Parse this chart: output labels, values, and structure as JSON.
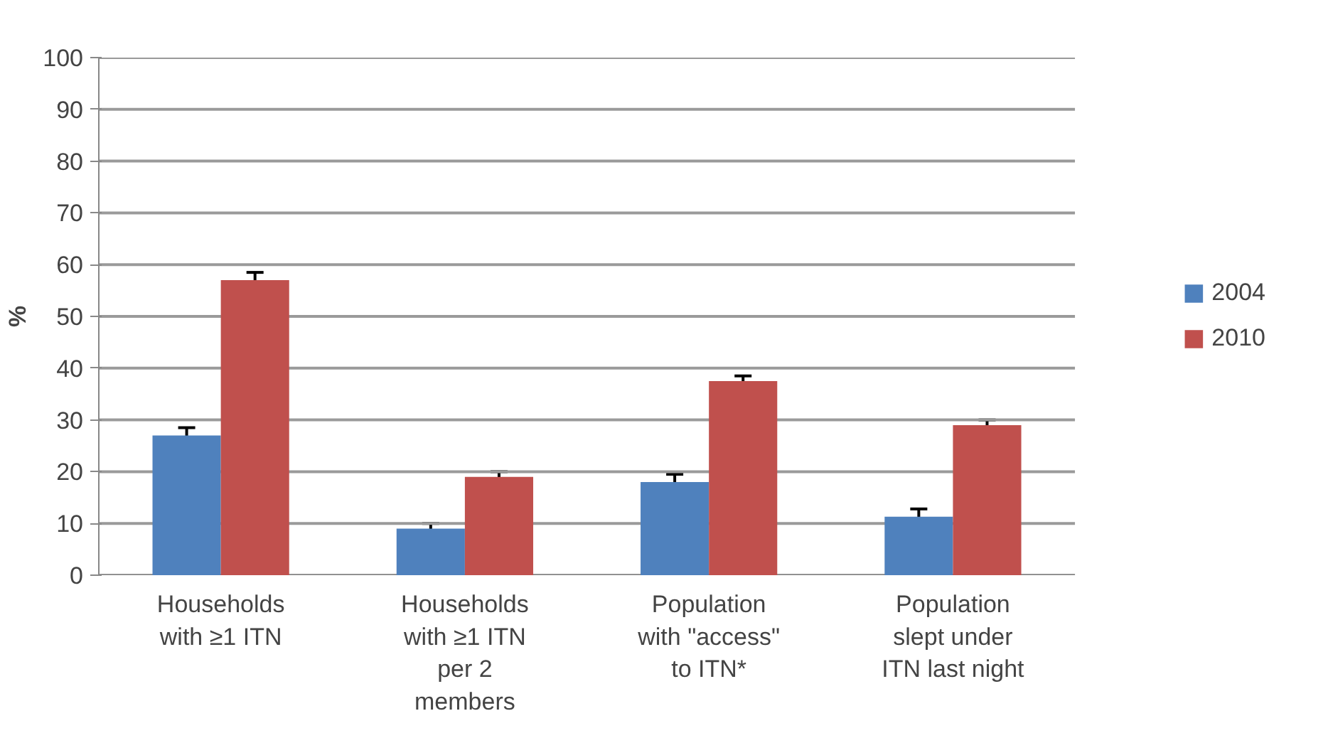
{
  "chart_data": {
    "type": "bar",
    "ylabel": "%",
    "categories": [
      "Households\nwith ≥1 ITN",
      "Households\nwith ≥1 ITN\nper 2\nmembers",
      "Population\nwith \"access\"\nto ITN*",
      "Population\nslept under\nITN last night"
    ],
    "series": [
      {
        "name": "2004",
        "color": "#4f81bd",
        "values": [
          27,
          9,
          18,
          11.3
        ],
        "errors": [
          1.5,
          1,
          1.5,
          1.5
        ]
      },
      {
        "name": "2010",
        "color": "#c0504d",
        "values": [
          57,
          19,
          37.5,
          29
        ],
        "errors": [
          1.5,
          1,
          1,
          1
        ]
      }
    ],
    "ylim": [
      0,
      100
    ],
    "yticks": [
      0,
      10,
      20,
      30,
      40,
      50,
      60,
      70,
      80,
      90,
      100
    ],
    "grid": "y",
    "legend": "right"
  }
}
